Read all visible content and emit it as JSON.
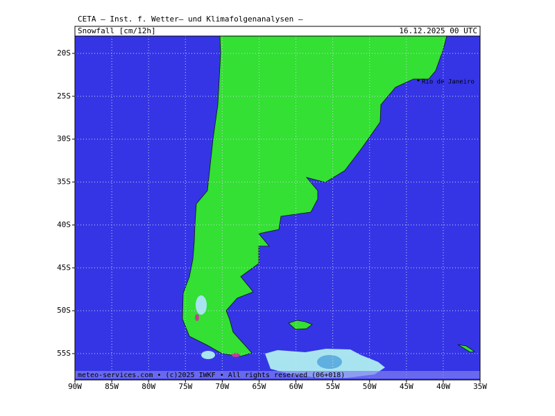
{
  "header": {
    "title": "CETA — Inst. f. Wetter— und Klimafolgenanalysen —",
    "product": "Snowfall [cm/12h]",
    "valid": "16.12.2025 00 UTC"
  },
  "map": {
    "xlim": [
      -90,
      -35
    ],
    "ylim": [
      -58.07,
      -17.98
    ],
    "xticks": [
      {
        "value": -90,
        "label": "90W"
      },
      {
        "value": -85,
        "label": "85W"
      },
      {
        "value": -80,
        "label": "80W"
      },
      {
        "value": -75,
        "label": "75W"
      },
      {
        "value": -70,
        "label": "70W"
      },
      {
        "value": -65,
        "label": "65W"
      },
      {
        "value": -60,
        "label": "60W"
      },
      {
        "value": -55,
        "label": "55W"
      },
      {
        "value": -50,
        "label": "50W"
      },
      {
        "value": -45,
        "label": "45W"
      },
      {
        "value": -40,
        "label": "40W"
      },
      {
        "value": -35,
        "label": "35W"
      }
    ],
    "yticks": [
      {
        "value": -20,
        "label": "20S"
      },
      {
        "value": -25,
        "label": "25S"
      },
      {
        "value": -30,
        "label": "30S"
      },
      {
        "value": -35,
        "label": "35S"
      },
      {
        "value": -40,
        "label": "40S"
      },
      {
        "value": -45,
        "label": "45S"
      },
      {
        "value": -50,
        "label": "50S"
      },
      {
        "value": -55,
        "label": "55S"
      }
    ],
    "grid": true,
    "city": "Rio de Janeiro"
  },
  "footer": "meteo-services.com • (c)2025 IWKF • All rights reserved (06+018)"
}
